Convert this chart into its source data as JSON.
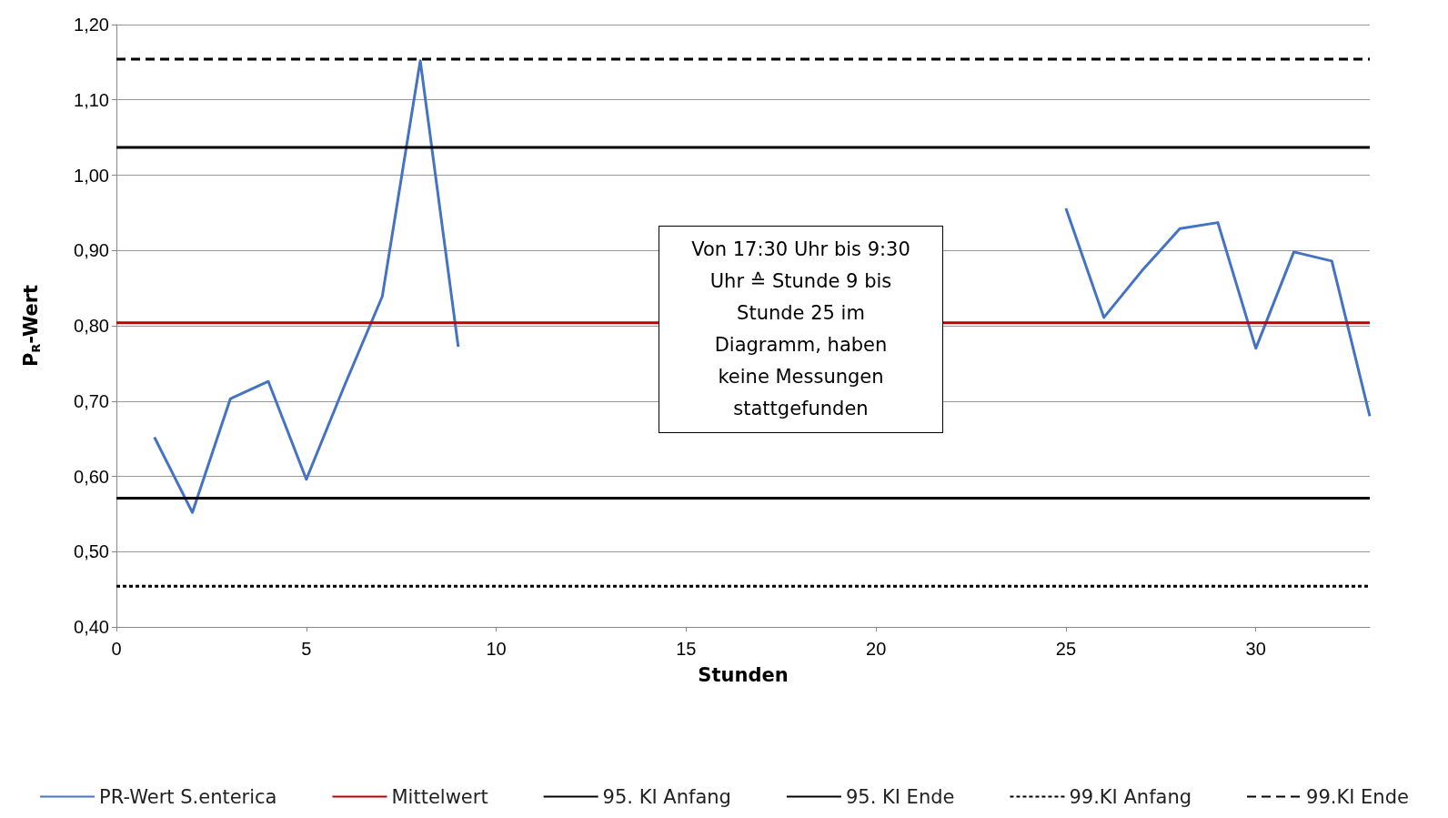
{
  "chart_data": {
    "type": "line",
    "xlabel": "Stunden",
    "ylabel": "P$_{R}$-Wert",
    "xlim": [
      0,
      33
    ],
    "xticks": [
      0,
      5,
      10,
      15,
      20,
      25,
      30
    ],
    "ylim": [
      0.4,
      1.2
    ],
    "yticks": [
      {
        "value": 0.4,
        "label": "0,40"
      },
      {
        "value": 0.5,
        "label": "0,50"
      },
      {
        "value": 0.6,
        "label": "0,60"
      },
      {
        "value": 0.7,
        "label": "0,70"
      },
      {
        "value": 0.8,
        "label": "0,80"
      },
      {
        "value": 0.9,
        "label": "0,90"
      },
      {
        "value": 1.0,
        "label": "1,00"
      },
      {
        "value": 1.1,
        "label": "1,10"
      },
      {
        "value": 1.2,
        "label": "1,20"
      }
    ],
    "grid": "y",
    "legend": "bottom",
    "marker": "none",
    "annotations": [
      "Von  17:30 Uhr bis 9:30 Uhr ≙ Stunde 9 bis Stunde 25 im Diagramm, haben keine Messungen stattgefunden"
    ],
    "series": [
      {
        "name": "PR-Wert S.enterica",
        "color": "#4472c4",
        "line_style": "solid",
        "x": [
          1,
          2,
          3,
          4,
          5,
          6,
          7,
          8,
          9,
          10,
          11,
          12,
          13,
          14,
          15,
          16,
          17,
          18,
          19,
          20,
          21,
          22,
          23,
          24,
          25,
          26,
          27,
          28,
          29,
          30,
          31,
          32,
          33
        ],
        "values": [
          0.652,
          0.552,
          0.703,
          0.726,
          0.596,
          0.72,
          0.839,
          1.152,
          0.772,
          null,
          null,
          null,
          null,
          null,
          null,
          null,
          null,
          null,
          null,
          null,
          null,
          null,
          null,
          null,
          0.956,
          0.811,
          0.873,
          0.929,
          0.937,
          0.77,
          0.898,
          0.886,
          0.68
        ]
      },
      {
        "name": "Mittelwert",
        "color": "#c00000",
        "line_style": "solid",
        "x": [
          0,
          33
        ],
        "values": [
          0.804,
          0.804
        ]
      },
      {
        "name": "95. KI Anfang",
        "color": "#000000",
        "line_style": "solid",
        "x": [
          0,
          33
        ],
        "values": [
          0.571,
          0.571
        ]
      },
      {
        "name": "95. KI Ende",
        "color": "#000000",
        "line_style": "solid",
        "x": [
          0,
          33
        ],
        "values": [
          1.037,
          1.037
        ]
      },
      {
        "name": "99.KI Anfang",
        "color": "#000000",
        "line_style": "dotted",
        "x": [
          0,
          33
        ],
        "values": [
          0.454,
          0.454
        ]
      },
      {
        "name": "99.KI Ende",
        "color": "#000000",
        "line_style": "dashed",
        "x": [
          0,
          33
        ],
        "values": [
          1.154,
          1.154
        ]
      }
    ]
  }
}
